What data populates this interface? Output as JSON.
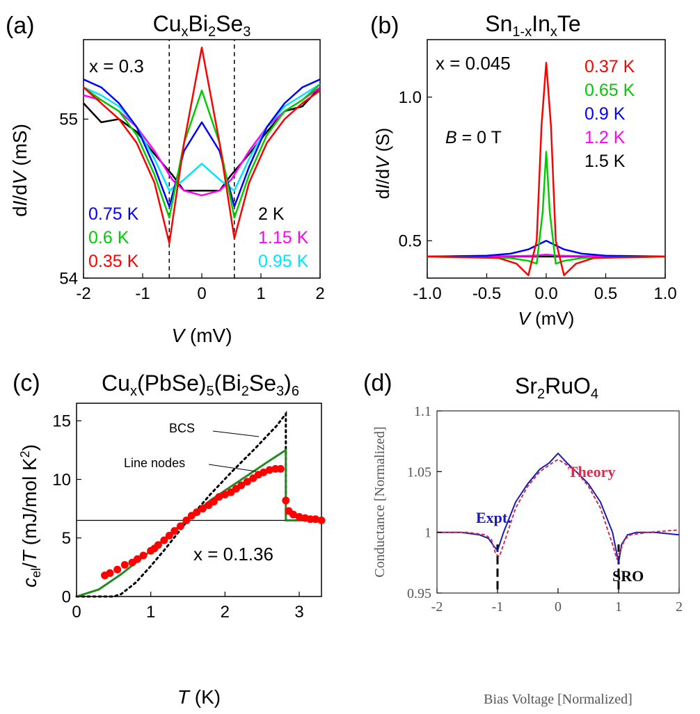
{
  "chart_data": [
    {
      "type": "line",
      "panel_label": "(a)",
      "title": "CuxBi2Se3",
      "xlabel": "V (mV)",
      "ylabel": "dI/dV (mS)",
      "xlim": [
        -2,
        2
      ],
      "ylim": [
        54,
        55.5
      ],
      "xticks": [
        "-2",
        "-1",
        "0",
        "1",
        "2"
      ],
      "yticks": [
        "54",
        "55"
      ],
      "annotation": "x = 0.3",
      "vlines": [
        -0.55,
        0.55
      ],
      "legend": [
        "0.75 K",
        "0.6 K",
        "0.35 K",
        "2 K",
        "1.15 K",
        "0.95 K"
      ],
      "series": [
        {
          "name": "2 K",
          "color": "#000000",
          "x": [
            -2,
            -1.7,
            -1.4,
            -1.1,
            -0.8,
            -0.5,
            -0.3,
            0,
            0.3,
            0.5,
            0.8,
            1.1,
            1.4,
            1.7,
            2
          ],
          "y": [
            55.1,
            54.98,
            55.0,
            54.92,
            54.78,
            54.65,
            54.55,
            54.55,
            54.55,
            54.65,
            54.78,
            54.92,
            55.05,
            55.08,
            55.2
          ]
        },
        {
          "name": "1.15 K",
          "color": "#ff00ff",
          "x": [
            -2,
            -1.7,
            -1.4,
            -1.1,
            -0.8,
            -0.5,
            -0.3,
            0,
            0.3,
            0.5,
            0.8,
            1.1,
            1.4,
            1.7,
            2
          ],
          "y": [
            55.15,
            55.12,
            55.05,
            54.95,
            54.8,
            54.62,
            54.55,
            54.52,
            54.55,
            54.62,
            54.8,
            54.95,
            55.05,
            55.12,
            55.2
          ]
        },
        {
          "name": "0.95 K",
          "color": "#00e5ff",
          "x": [
            -2,
            -1.7,
            -1.4,
            -1.1,
            -0.8,
            -0.55,
            -0.3,
            0,
            0.3,
            0.55,
            0.8,
            1.1,
            1.4,
            1.7,
            2
          ],
          "y": [
            55.2,
            55.15,
            55.08,
            54.95,
            54.75,
            54.55,
            54.62,
            54.72,
            54.62,
            54.55,
            54.75,
            54.95,
            55.08,
            55.15,
            55.22
          ]
        },
        {
          "name": "0.75 K",
          "color": "#0000ff",
          "x": [
            -2,
            -1.7,
            -1.4,
            -1.1,
            -0.8,
            -0.55,
            -0.3,
            0,
            0.3,
            0.55,
            0.8,
            1.1,
            1.4,
            1.7,
            2
          ],
          "y": [
            55.25,
            55.2,
            55.1,
            54.95,
            54.7,
            54.45,
            54.8,
            54.98,
            54.8,
            54.45,
            54.7,
            54.95,
            55.1,
            55.2,
            55.25
          ]
        },
        {
          "name": "0.6 K",
          "color": "#00cc00",
          "x": [
            -2,
            -1.7,
            -1.4,
            -1.1,
            -0.8,
            -0.55,
            -0.3,
            0,
            0.3,
            0.55,
            0.8,
            1.1,
            1.4,
            1.7,
            2
          ],
          "y": [
            55.2,
            55.12,
            55.05,
            54.9,
            54.65,
            54.38,
            54.85,
            55.18,
            54.85,
            54.38,
            54.65,
            54.9,
            55.05,
            55.12,
            55.22
          ]
        },
        {
          "name": "0.35 K",
          "color": "#ff0000",
          "x": [
            -2,
            -1.7,
            -1.4,
            -1.1,
            -0.8,
            -0.55,
            -0.3,
            0,
            0.3,
            0.55,
            0.8,
            1.1,
            1.4,
            1.7,
            2
          ],
          "y": [
            55.2,
            55.1,
            55.0,
            54.85,
            54.6,
            54.22,
            54.85,
            55.45,
            54.85,
            54.25,
            54.6,
            54.85,
            55.0,
            55.1,
            55.18
          ]
        }
      ]
    },
    {
      "type": "line",
      "panel_label": "(b)",
      "title": "Sn1-xInxTe",
      "xlabel": "V (mV)",
      "ylabel": "dI/dV (S)",
      "xlim": [
        -1.0,
        1.0
      ],
      "ylim": [
        0.37,
        1.2
      ],
      "xticks": [
        "-1.0",
        "-0.5",
        "0.0",
        "0.5",
        "1.0"
      ],
      "yticks": [
        "0.5",
        "1.0"
      ],
      "annotations": [
        "x = 0.045",
        "B = 0 T"
      ],
      "legend": [
        "0.37 K",
        "0.65 K",
        "0.9 K",
        "1.2 K",
        "1.5 K"
      ],
      "series": [
        {
          "name": "1.5 K",
          "color": "#000000",
          "x": [
            -1.0,
            -0.5,
            0,
            0.5,
            1.0
          ],
          "y": [
            0.445,
            0.445,
            0.445,
            0.445,
            0.445
          ]
        },
        {
          "name": "1.2 K",
          "color": "#ff00ff",
          "x": [
            -1.0,
            -0.5,
            -0.1,
            0,
            0.1,
            0.5,
            1.0
          ],
          "y": [
            0.445,
            0.445,
            0.448,
            0.452,
            0.448,
            0.445,
            0.445
          ]
        },
        {
          "name": "0.9 K",
          "color": "#0000ff",
          "x": [
            -1.0,
            -0.5,
            -0.3,
            -0.15,
            0,
            0.15,
            0.3,
            0.5,
            1.0
          ],
          "y": [
            0.445,
            0.448,
            0.455,
            0.47,
            0.5,
            0.47,
            0.455,
            0.448,
            0.445
          ]
        },
        {
          "name": "0.65 K",
          "color": "#00cc00",
          "x": [
            -1.0,
            -0.3,
            -0.15,
            -0.08,
            -0.03,
            0,
            0.03,
            0.08,
            0.15,
            0.3,
            1.0
          ],
          "y": [
            0.445,
            0.44,
            0.43,
            0.42,
            0.6,
            0.81,
            0.6,
            0.42,
            0.43,
            0.44,
            0.445
          ]
        },
        {
          "name": "0.37 K",
          "color": "#ff0000",
          "x": [
            -1.0,
            -0.4,
            -0.25,
            -0.15,
            -0.08,
            -0.04,
            0,
            0.04,
            0.08,
            0.15,
            0.25,
            0.4,
            1.0
          ],
          "y": [
            0.445,
            0.44,
            0.42,
            0.38,
            0.5,
            0.9,
            1.12,
            0.9,
            0.5,
            0.38,
            0.42,
            0.44,
            0.445
          ]
        }
      ]
    },
    {
      "type": "scatter",
      "panel_label": "(c)",
      "title": "Cux(PbSe)5(Bi2Se3)6",
      "xlabel": "T (K)",
      "ylabel": "cel/T (mJ/mol K2)",
      "xlim": [
        0,
        3.3
      ],
      "ylim": [
        0,
        16.5
      ],
      "xticks": [
        "0",
        "1",
        "2",
        "3"
      ],
      "yticks": [
        "0",
        "5",
        "10",
        "15"
      ],
      "annotations": [
        "BCS",
        "Line nodes",
        "x = 0.1.36"
      ],
      "hline": 6.5,
      "bcs_curve": {
        "color": "#000000",
        "x": [
          0,
          0.5,
          0.6,
          0.8,
          1.0,
          1.2,
          1.5,
          1.8,
          2.1,
          2.4,
          2.7,
          2.82,
          2.82,
          3.3
        ],
        "y": [
          0,
          0,
          0.2,
          1.2,
          2.6,
          4.1,
          6.5,
          8.7,
          10.7,
          12.6,
          14.6,
          15.6,
          6.5,
          6.5
        ]
      },
      "line_nodes_curve": {
        "color": "#228b22",
        "x": [
          0,
          0.3,
          0.6,
          1.0,
          1.4,
          1.8,
          2.2,
          2.6,
          2.82,
          2.82,
          3.3
        ],
        "y": [
          0,
          0.6,
          1.9,
          3.9,
          6.1,
          8.2,
          9.9,
          11.6,
          12.5,
          6.5,
          6.5
        ]
      },
      "points": {
        "color": "#ff0000",
        "x": [
          0.38,
          0.45,
          0.55,
          0.65,
          0.75,
          0.82,
          0.9,
          1.0,
          1.05,
          1.1,
          1.18,
          1.25,
          1.32,
          1.4,
          1.48,
          1.55,
          1.62,
          1.7,
          1.78,
          1.85,
          1.92,
          2.0,
          2.08,
          2.15,
          2.22,
          2.3,
          2.38,
          2.45,
          2.52,
          2.6,
          2.68,
          2.75,
          2.82,
          2.86,
          2.92,
          3.0,
          3.08,
          3.15,
          3.22,
          3.3
        ],
        "y": [
          1.8,
          2.0,
          2.3,
          2.7,
          2.9,
          3.2,
          3.5,
          3.9,
          4.1,
          4.4,
          4.8,
          5.2,
          5.6,
          6.0,
          6.5,
          6.9,
          7.2,
          7.5,
          7.8,
          8.1,
          8.5,
          8.7,
          8.9,
          9.2,
          9.5,
          9.8,
          10.1,
          10.4,
          10.6,
          10.8,
          10.9,
          10.9,
          8.2,
          7.3,
          7.0,
          6.8,
          6.7,
          6.6,
          6.6,
          6.5
        ]
      }
    },
    {
      "type": "line",
      "panel_label": "(d)",
      "title": "Sr2RuO4",
      "xlabel": "Bias Voltage [Normalized]",
      "ylabel": "Conductance [Normalized]",
      "xlim": [
        -2,
        2
      ],
      "ylim": [
        0.95,
        1.1
      ],
      "xticks": [
        "-2",
        "-1",
        "0",
        "1",
        "2"
      ],
      "yticks": [
        "0.95",
        "1",
        "1.05",
        "1.1"
      ],
      "annotations": [
        "Expt.",
        "Theory",
        "SRO"
      ],
      "vlines": [
        -1,
        1
      ],
      "series": [
        {
          "name": "Expt.",
          "color": "#1a1ab5",
          "x": [
            -2,
            -1.6,
            -1.3,
            -1.15,
            -1.05,
            -1.0,
            -0.9,
            -0.7,
            -0.5,
            -0.3,
            -0.15,
            0,
            0.15,
            0.3,
            0.5,
            0.7,
            0.9,
            1.0,
            1.05,
            1.15,
            1.3,
            1.6,
            2
          ],
          "y": [
            1.0,
            1.0,
            0.998,
            0.995,
            0.988,
            0.985,
            1.0,
            1.025,
            1.04,
            1.052,
            1.057,
            1.065,
            1.057,
            1.05,
            1.04,
            1.025,
            1.0,
            0.975,
            0.99,
            0.998,
            1.0,
            1.0,
            0.998
          ]
        },
        {
          "name": "Theory",
          "color": "#d03050",
          "x": [
            -2,
            -1.5,
            -1.2,
            -1.1,
            -1.03,
            -0.97,
            -0.9,
            -0.7,
            -0.5,
            -0.3,
            -0.1,
            0,
            0.1,
            0.3,
            0.5,
            0.7,
            0.9,
            0.97,
            1.03,
            1.1,
            1.2,
            1.5,
            2
          ],
          "y": [
            1.0,
            1.0,
            0.998,
            0.994,
            0.982,
            0.98,
            0.99,
            1.02,
            1.038,
            1.05,
            1.057,
            1.06,
            1.057,
            1.05,
            1.038,
            1.02,
            0.99,
            0.978,
            0.985,
            0.994,
            0.998,
            1.0,
            1.002
          ]
        }
      ]
    }
  ]
}
